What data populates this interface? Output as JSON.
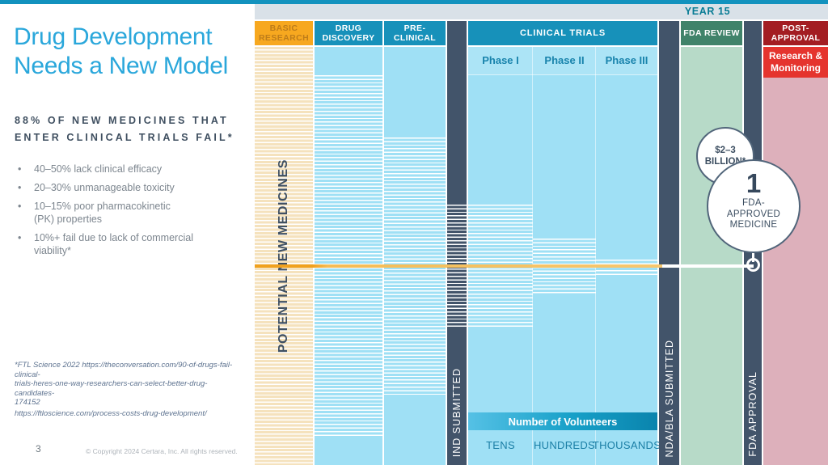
{
  "slide": {
    "page_number": "3",
    "copyright": "© Copyright 2024 Certara, Inc. All rights reserved."
  },
  "left_panel": {
    "title": {
      "line1": "Drug Development",
      "line2": "Needs a New Model"
    },
    "subtitle": {
      "line1": "88% OF NEW MEDICINES THAT",
      "line2": "ENTER CLINICAL TRIALS FAIL*"
    },
    "bullets": [
      {
        "line1": "40–50% lack clinical efficacy",
        "line2": ""
      },
      {
        "line1": "20–30% unmanageable toxicity",
        "line2": ""
      },
      {
        "line1": "10–15%  poor pharmacokinetic",
        "line2": "(PK) properties"
      },
      {
        "line1": "10%+ fail due to lack of commercial",
        "line2": "viability*"
      }
    ],
    "footnote1": {
      "line1": "*FTL Science 2022 https://theconversation.com/90-of-drugs-fail-clinical-",
      "line2": "trials-heres-one-way-researchers-can-select-better-drug-candidates-",
      "line3": "174152"
    },
    "footnote2": "https://ftloscience.com/process-costs-drug-development/"
  },
  "diagram": {
    "year_label": "YEAR 15",
    "headers": {
      "basic_research": "BASIC RESEARCH",
      "drug_discovery": "DRUG DISCOVERY",
      "pre_clinical": "PRE-CLINICAL",
      "clinical_trials": "CLINICAL TRIALS",
      "fda_review": "FDA REVIEW",
      "post_approval": "POST-APPROVAL"
    },
    "post_approval_sub": "Research & Monitoring",
    "phases": {
      "p1": "Phase I",
      "p2": "Phase II",
      "p3": "Phase III"
    },
    "gates": {
      "ind": "IND SUBMITTED",
      "nda": "NDA/BLA SUBMITTED",
      "approval": "FDA APPROVAL"
    },
    "potential_new_medicines": "POTENTIAL NEW MEDICINES",
    "volunteers": {
      "title": "Number of Volunteers",
      "tens": "TENS",
      "hundreds": "HUNDREDS",
      "thousands": "THOUSANDS"
    },
    "cost_circle": {
      "line1": "$2–3",
      "line2": "BILLION*"
    },
    "approved_circle": {
      "number": "1",
      "line1": "FDA-",
      "line2": "APPROVED",
      "line3": "MEDICINE"
    },
    "colors": {
      "accent_blue": "#2AA7DB",
      "top_bar": "#1292BE",
      "teal_header": "#1791BA",
      "orange_header": "#F7A81F",
      "green_header": "#40836A",
      "dark_red_header": "#A31D22",
      "red_block": "#E5342E",
      "dark_slate": "#42546A",
      "light_blue": "#9FE0F5",
      "tan_stripe": "#F5E2BD",
      "green_body": "#B7DAC8",
      "pink_body": "#DDB0BB",
      "gold_line": "#F0A11E"
    }
  }
}
